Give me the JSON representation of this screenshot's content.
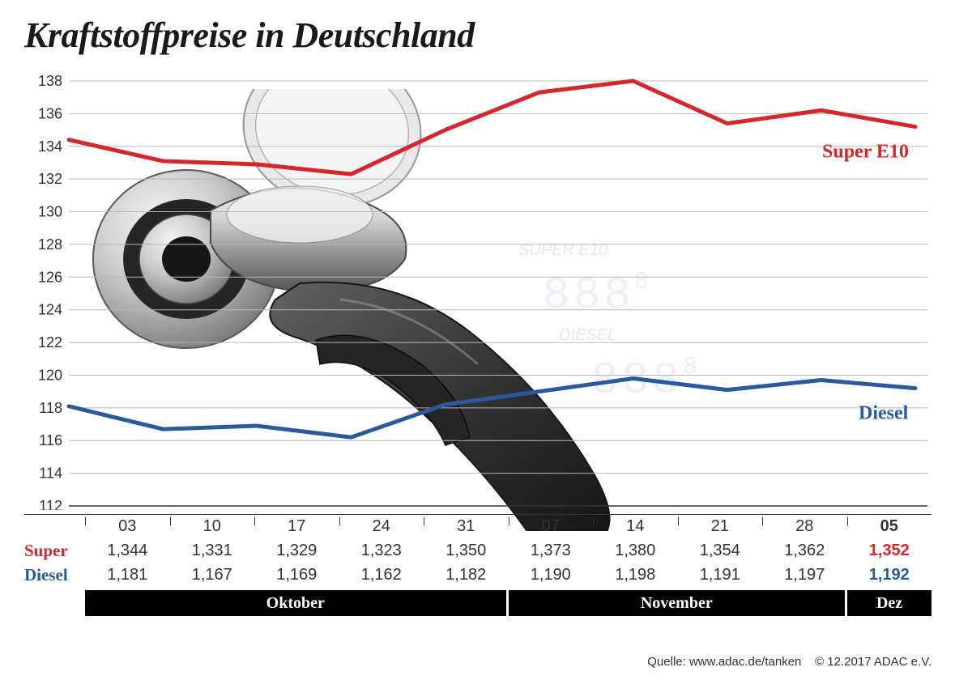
{
  "title": "Kraftstoffpreise in Deutschland",
  "chart": {
    "type": "line",
    "ylim": [
      112,
      138
    ],
    "ytick_start": 112,
    "ytick_step": 2,
    "yticks": [
      112,
      114,
      116,
      118,
      120,
      122,
      124,
      126,
      128,
      130,
      132,
      134,
      136,
      138
    ],
    "background_color": "#ffffff",
    "grid_color": "#b8b8b8",
    "line_width": 5,
    "label_fontsize": 18,
    "series_label_fontsize": 24,
    "series": [
      {
        "name": "Super E10",
        "color": "#d7262b",
        "label": "Super E10",
        "y": [
          134.4,
          133.1,
          132.9,
          132.3,
          135.0,
          137.3,
          138.0,
          135.4,
          136.2,
          135.2
        ]
      },
      {
        "name": "Diesel",
        "color": "#2a5a9e",
        "label": "Diesel",
        "y": [
          118.1,
          116.7,
          116.9,
          116.2,
          118.2,
          119.0,
          119.8,
          119.1,
          119.7,
          119.2
        ]
      }
    ],
    "x_dates": [
      "03",
      "10",
      "17",
      "24",
      "31",
      "07",
      "14",
      "21",
      "28",
      "05"
    ],
    "watermark": {
      "label1": "SUPER E10",
      "label2": "DIESEL",
      "digits": "888",
      "small_digit": "8",
      "color": "#b8c8e0"
    }
  },
  "table": {
    "row_labels": {
      "super": "Super",
      "diesel": "Diesel"
    },
    "row_label_colors": {
      "super": "#d7262b",
      "diesel": "#2a5a9e"
    },
    "dates": [
      "03",
      "10",
      "17",
      "24",
      "31",
      "07",
      "14",
      "21",
      "28",
      "05"
    ],
    "super_values": [
      "1,344",
      "1,331",
      "1,329",
      "1,323",
      "1,350",
      "1,373",
      "1,380",
      "1,354",
      "1,362",
      "1,352"
    ],
    "diesel_values": [
      "1,181",
      "1,167",
      "1,169",
      "1,162",
      "1,182",
      "1,190",
      "1,198",
      "1,191",
      "1,197",
      "1,192"
    ],
    "last_bold": true,
    "last_super_color": "#d7262b",
    "last_diesel_color": "#2a5a9e",
    "value_fontsize": 20
  },
  "months": {
    "segments": [
      {
        "label": "Oktober",
        "span": 5
      },
      {
        "label": "November",
        "span": 4
      },
      {
        "label": "Dez",
        "span": 1
      }
    ],
    "bg_color": "#000000",
    "text_color": "#ffffff"
  },
  "footer": {
    "source_label": "Quelle:",
    "source": "www.adac.de/tanken",
    "copyright": "© 12.2017  ADAC e.V."
  },
  "illustration": {
    "body_fill": "#3a3a3a",
    "body_stroke": "#1a1a1a",
    "metal_light": "#e8e8e8",
    "metal_mid": "#b0b0b0",
    "metal_dark": "#5a5a5a",
    "cap_fill": "#d8d8d8",
    "cap_stroke": "#888888"
  }
}
